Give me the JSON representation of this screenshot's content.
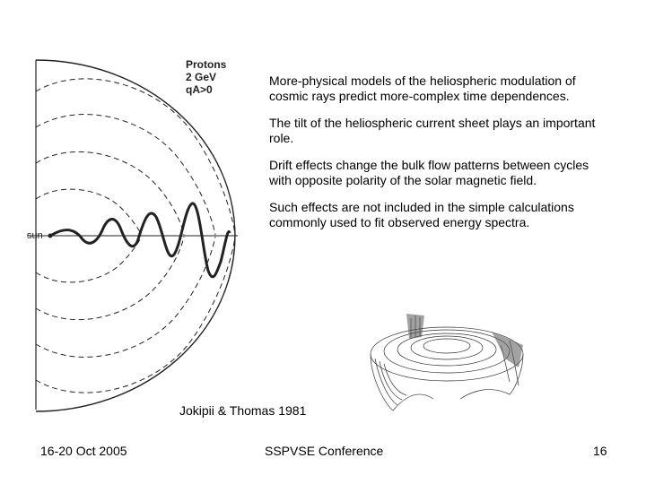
{
  "figure_labels": {
    "protons": "Protons",
    "energy": "2 GeV",
    "polarity": "qA>0",
    "sun": "sun"
  },
  "bullets": [
    "More-physical models of the heliospheric modulation of cosmic rays predict more-complex time dependences.",
    "The tilt of the heliospheric current sheet plays an important role.",
    "Drift effects change the bulk flow patterns between cycles with opposite polarity of the solar magnetic field.",
    "Such effects are not included in the simple calculations commonly used to fit observed energy spectra."
  ],
  "citation": "Jokipii & Thomas 1981",
  "footer": {
    "date": "16-20 Oct 2005",
    "conference": "SSPVSE Conference",
    "page": "16"
  }
}
